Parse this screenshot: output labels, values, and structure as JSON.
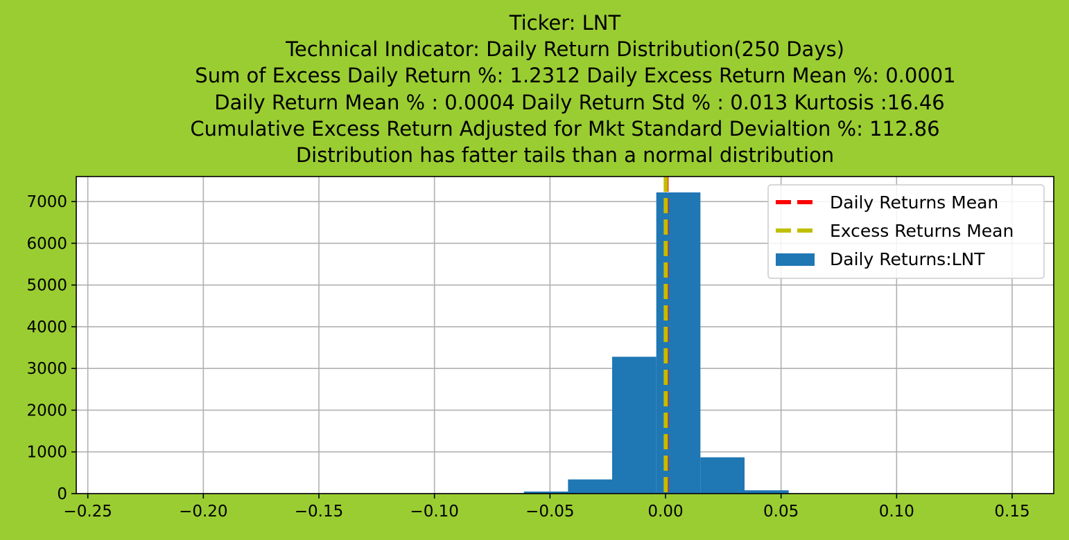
{
  "chart_data": {
    "type": "bar",
    "title_lines": [
      "Ticker: LNT",
      "Technical Indicator: Daily Return Distribution(250 Days)",
      "Sum of Excess Daily Return %: 1.2312   Daily Excess Return Mean %: 0.0001",
      "Daily Return Mean % : 0.0004    Daily Return Std % : 0.013  Kurtosis :16.46",
      "Cumulative Excess Return Adjusted for Mkt Standard Devialtion %: 112.86",
      "Distribution has fatter tails than a normal distribution"
    ],
    "xlabel": "",
    "ylabel": "",
    "xlim": [
      -0.255,
      0.168
    ],
    "ylim": [
      0,
      7600
    ],
    "x_ticks": [
      -0.25,
      -0.2,
      -0.15,
      -0.1,
      -0.05,
      0.0,
      0.05,
      0.1,
      0.15
    ],
    "x_tick_labels": [
      "−0.25",
      "−0.20",
      "−0.15",
      "−0.10",
      "−0.05",
      "0.00",
      "0.05",
      "0.10",
      "0.15"
    ],
    "y_ticks": [
      0,
      1000,
      2000,
      3000,
      4000,
      5000,
      6000,
      7000
    ],
    "y_tick_labels": [
      "0",
      "1000",
      "2000",
      "3000",
      "4000",
      "5000",
      "6000",
      "7000"
    ],
    "grid": true,
    "legend_position": "top-right",
    "histogram": {
      "name": "Daily Returns:LNT",
      "color": "#1f77b4",
      "bins": [
        {
          "start": -0.0613,
          "end": -0.0422,
          "count": 50
        },
        {
          "start": -0.0422,
          "end": -0.0231,
          "count": 340
        },
        {
          "start": -0.0231,
          "end": -0.004,
          "count": 3280
        },
        {
          "start": -0.004,
          "end": 0.0151,
          "count": 7220
        },
        {
          "start": 0.0151,
          "end": 0.0342,
          "count": 870
        },
        {
          "start": 0.0342,
          "end": 0.0533,
          "count": 80
        }
      ]
    },
    "vlines": [
      {
        "name": "Daily Returns Mean",
        "x": 0.0004,
        "color": "#ff0000",
        "style": "dashed"
      },
      {
        "name": "Excess Returns Mean",
        "x": 0.0001,
        "color": "#bfbf00",
        "style": "dashed"
      }
    ]
  }
}
